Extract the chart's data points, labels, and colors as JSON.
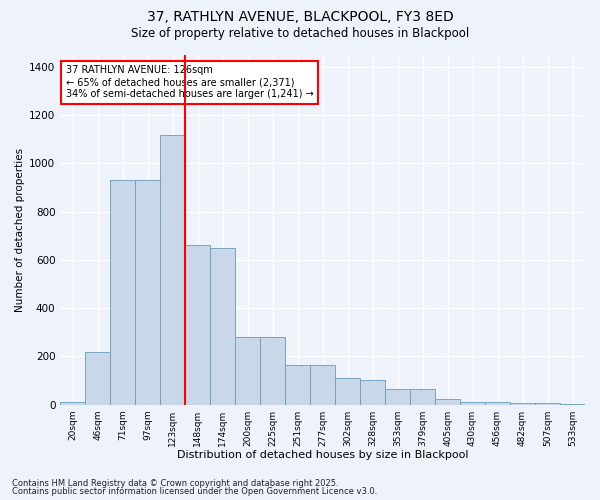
{
  "title_line1": "37, RATHLYN AVENUE, BLACKPOOL, FY3 8ED",
  "title_line2": "Size of property relative to detached houses in Blackpool",
  "xlabel": "Distribution of detached houses by size in Blackpool",
  "ylabel": "Number of detached properties",
  "categories": [
    "20sqm",
    "46sqm",
    "71sqm",
    "97sqm",
    "123sqm",
    "148sqm",
    "174sqm",
    "200sqm",
    "225sqm",
    "251sqm",
    "277sqm",
    "302sqm",
    "328sqm",
    "353sqm",
    "379sqm",
    "405sqm",
    "430sqm",
    "456sqm",
    "482sqm",
    "507sqm",
    "533sqm"
  ],
  "bar_values": [
    10,
    220,
    930,
    930,
    1120,
    660,
    650,
    280,
    280,
    165,
    165,
    110,
    100,
    65,
    65,
    25,
    12,
    12,
    5,
    5,
    2
  ],
  "bar_color": "#c8d8e8",
  "bar_edge_color": "#6a9ab8",
  "marker_bin_index": 4,
  "marker_color": "red",
  "annotation_text": "37 RATHLYN AVENUE: 126sqm\n← 65% of detached houses are smaller (2,371)\n34% of semi-detached houses are larger (1,241) →",
  "annotation_box_color": "white",
  "annotation_box_edge": "red",
  "ylim": [
    0,
    1450
  ],
  "yticks": [
    0,
    200,
    400,
    600,
    800,
    1000,
    1200,
    1400
  ],
  "background_color": "#eef2fb",
  "grid_color": "white",
  "footer_line1": "Contains HM Land Registry data © Crown copyright and database right 2025.",
  "footer_line2": "Contains public sector information licensed under the Open Government Licence v3.0."
}
